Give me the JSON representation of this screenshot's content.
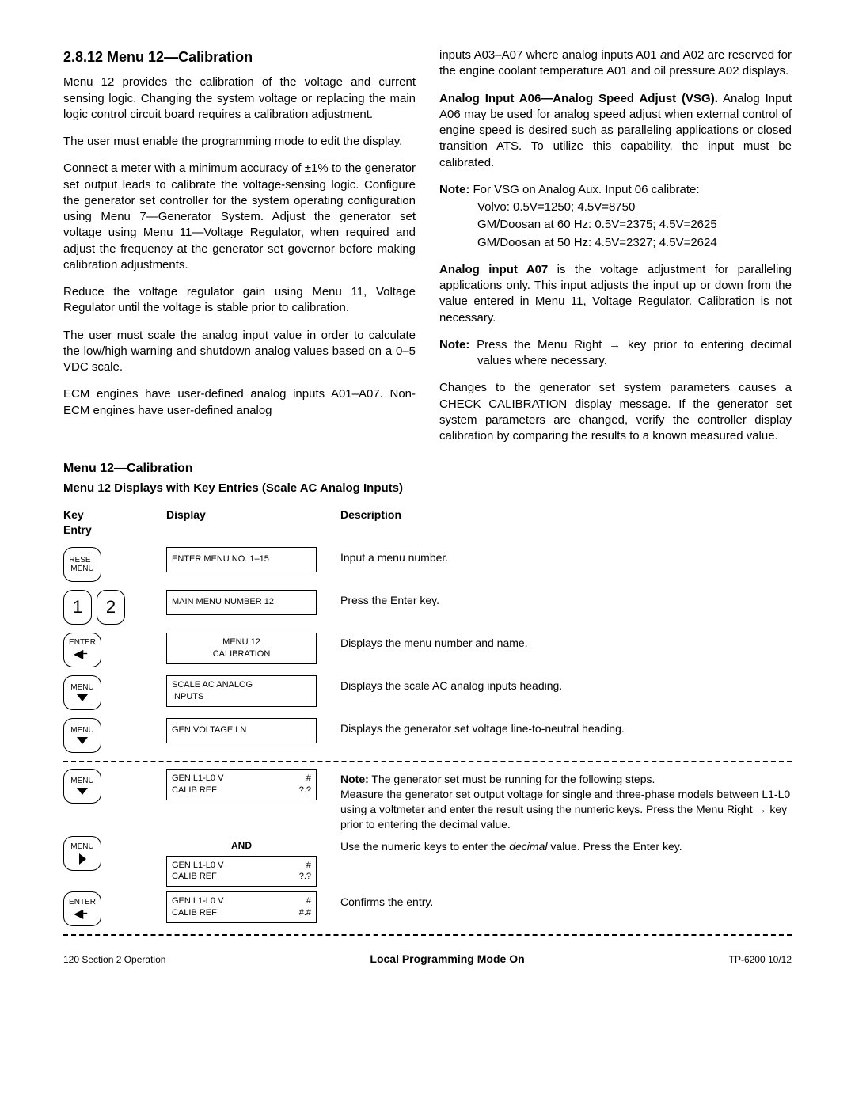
{
  "left": {
    "heading": "2.8.12  Menu 12—Calibration",
    "p1": "Menu 12 provides the calibration of the voltage and current sensing logic.  Changing the system voltage or replacing the main logic control circuit board requires a calibration adjustment.",
    "p2": "The user must enable the programming mode to edit the display.",
    "p3": "Connect a meter with a minimum accuracy of ±1% to the generator set output leads to calibrate the voltage-sensing logic.  Configure the generator set controller for the system operating configuration using Menu 7—Generator System.  Adjust the generator set voltage using Menu 11—Voltage Regulator, when required and adjust the frequency at the generator set governor before making calibration adjustments.",
    "p4": "Reduce the voltage regulator gain using Menu 11, Voltage Regulator until the voltage is stable prior to calibration.",
    "p5": "The user must scale the analog input value in order to calculate the low/high warning and shutdown analog values based on a 0–5 VDC scale.",
    "p6": "ECM engines have user-defined analog inputs A01–A07. Non-ECM engines have user-defined analog"
  },
  "right": {
    "p1a": "inputs A03–A07 where analog inputs A01 ",
    "p1b": "a",
    "p1c": "nd A02 are reserved for the engine coolant temperature A01 and oil pressure A02 displays.",
    "p2bold": "Analog Input A06—Analog Speed Adjust (VSG).",
    "p2": " Analog Input A06 may be used for analog speed adjust when external control of engine speed is desired such as paralleling applications or closed transition ATS.  To utilize this capability, the input must be calibrated.",
    "note1_label": "Note:",
    "note1_line1": " For VSG on Analog Aux. Input 06 calibrate:",
    "note1_line2": "Volvo: 0.5V=1250; 4.5V=8750",
    "note1_line3": "GM/Doosan at 60 Hz: 0.5V=2375; 4.5V=2625",
    "note1_line4": "GM/Doosan at 50 Hz: 4.5V=2327; 4.5V=2624",
    "p3bold": "Analog input A07",
    "p3": " is the voltage adjustment for paralleling applications only.  This input adjusts the input up or down from the value entered in Menu 11, Voltage Regulator.  Calibration is not necessary.",
    "note2_label": "Note:",
    "note2": " Press the Menu Right → key prior to entering decimal values where necessary.",
    "p4": "Changes to the generator set system parameters causes a CHECK CALIBRATION display message.  If the generator set system parameters are changed, verify the controller display calibration by comparing the results to a  known measured value."
  },
  "menu": {
    "title": "Menu 12—Calibration",
    "subtitle": "Menu 12 Displays with Key Entries (Scale AC Analog Inputs)",
    "headers": {
      "key": "Key\nEntry",
      "display": "Display",
      "desc": "Description"
    },
    "rows": [
      {
        "key_type": "reset",
        "key_lines": [
          "RESET",
          "MENU"
        ],
        "display_lines": [
          "ENTER MENU NO. 1–15"
        ],
        "display_centered": false,
        "desc": "Input a menu number."
      },
      {
        "key_type": "num",
        "key_nums": [
          "1",
          "2"
        ],
        "display_lines": [
          "MAIN MENU NUMBER 12"
        ],
        "display_centered": false,
        "desc": "Press the Enter key."
      },
      {
        "key_type": "enter",
        "key_lines": [
          "ENTER"
        ],
        "display_lines": [
          "MENU 12",
          "CALIBRATION"
        ],
        "display_centered": true,
        "desc": "Displays the menu number and name."
      },
      {
        "key_type": "menu-down",
        "key_lines": [
          "MENU"
        ],
        "display_lines": [
          "SCALE AC ANALOG",
          "INPUTS"
        ],
        "display_centered": false,
        "desc": "Displays the scale AC analog inputs heading."
      },
      {
        "key_type": "menu-down",
        "key_lines": [
          "MENU"
        ],
        "display_lines": [
          "GEN VOLTAGE LN"
        ],
        "display_centered": false,
        "desc": "Displays the generator set voltage line-to-neutral heading."
      }
    ],
    "dashed_rows": [
      {
        "key_type": "menu-down",
        "key_lines": [
          "MENU"
        ],
        "display_pairs": [
          [
            "GEN L1-L0 V",
            "#"
          ],
          [
            "CALIB REF",
            "?.?"
          ]
        ],
        "desc_html": "<span class='bold-run'>Note:</span> The generator set must be running for the following steps.<br>Measure the generator set output voltage for single and three-phase models between L1-L0 using a voltmeter and enter the result using the numeric keys.  Press the Menu Right → key prior to entering the decimal value."
      },
      {
        "and": true,
        "key_type": "menu-right",
        "key_lines": [
          "MENU"
        ],
        "display_pairs": [
          [
            "GEN L1-L0 V",
            "#"
          ],
          [
            "CALIB REF",
            "?.?"
          ]
        ],
        "desc": "Use the numeric keys to enter the <span class='italic'>decimal</span> value.  Press the Enter key."
      },
      {
        "key_type": "enter",
        "key_lines": [
          "ENTER"
        ],
        "display_pairs": [
          [
            "GEN L1-L0 V",
            "#"
          ],
          [
            "CALIB REF",
            "#.#"
          ]
        ],
        "desc": "Confirms the entry."
      }
    ],
    "and_label": "AND"
  },
  "footer": {
    "left": "120   Section 2  Operation",
    "center": "Local Programming Mode On",
    "right": "TP-6200  10/12"
  }
}
